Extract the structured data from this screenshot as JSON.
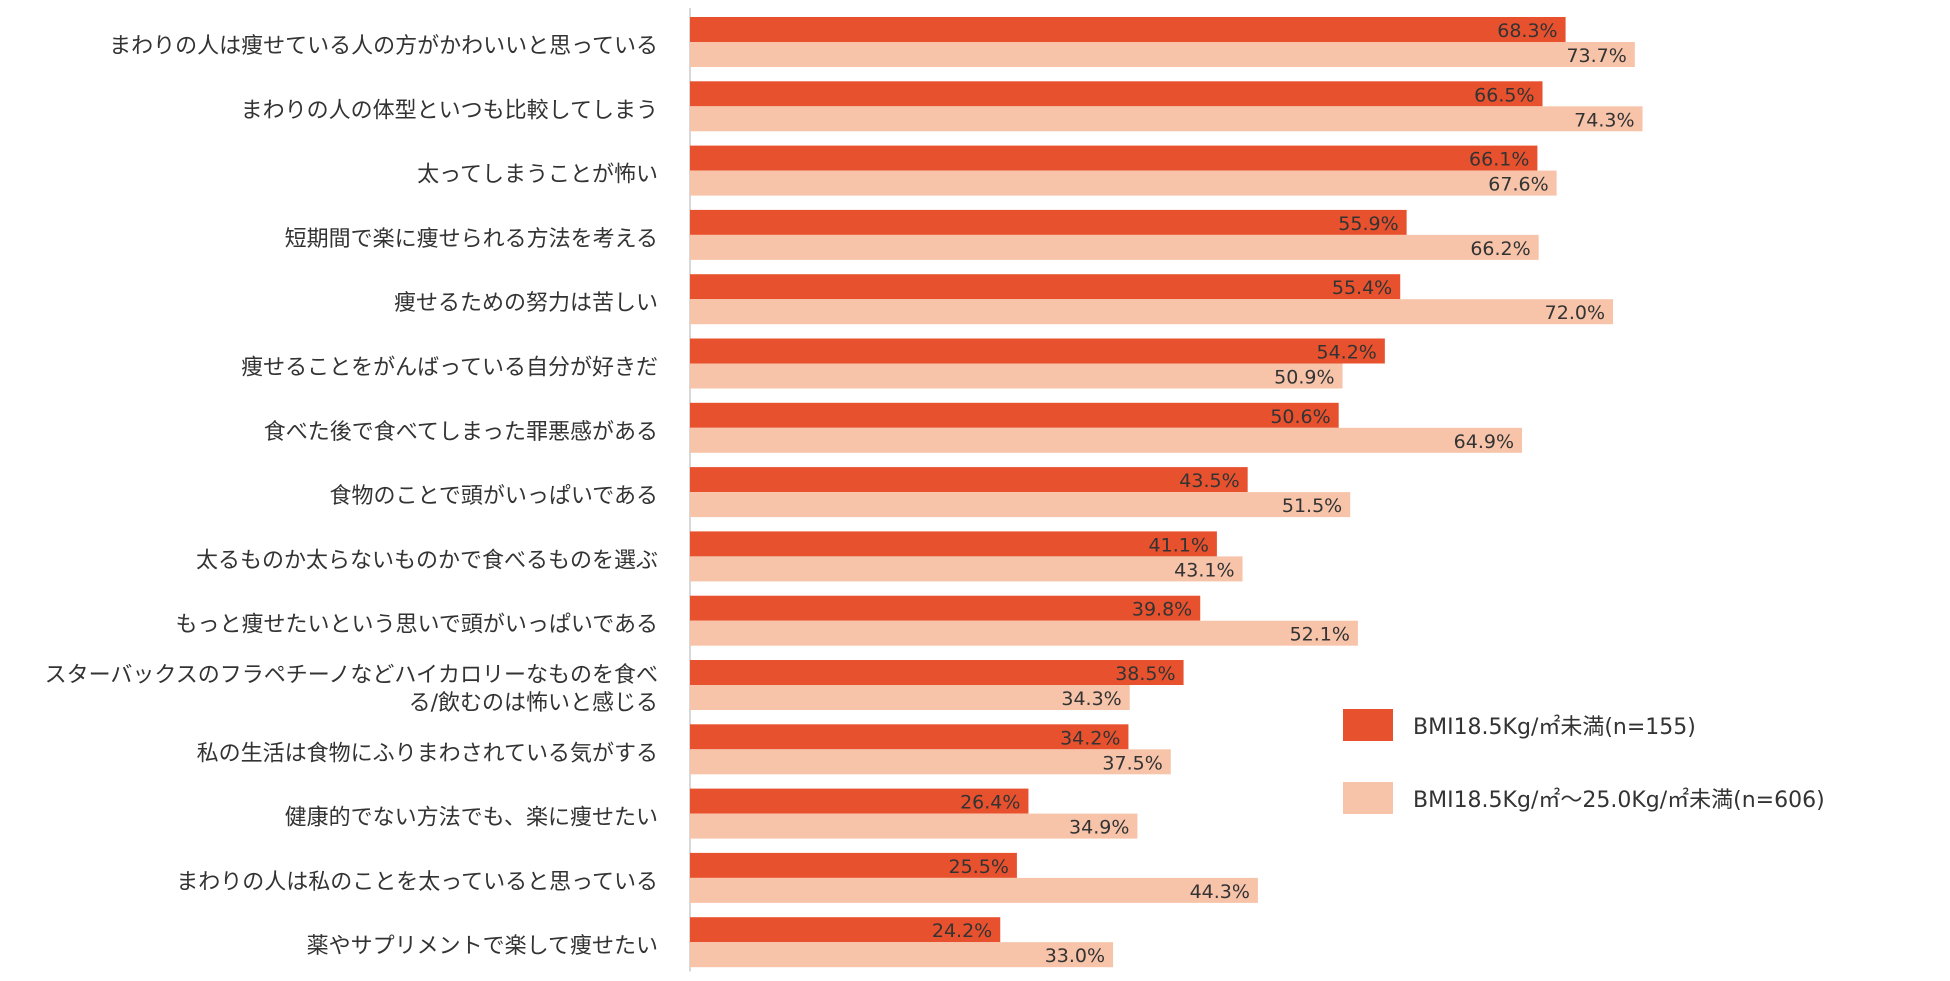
{
  "colors": {
    "series1": "#e8512e",
    "series2": "#f7c4aa",
    "axis": "#cccccc",
    "text": "#333333"
  },
  "chart_data": {
    "type": "bar",
    "orientation": "horizontal",
    "title": "",
    "xlabel": "",
    "ylabel": "",
    "xlim": [
      0,
      100
    ],
    "grid": false,
    "legend_position": "right",
    "categories": [
      [
        "まわりの人は痩せている人の方がかわいいと思っている"
      ],
      [
        "まわりの人の体型といつも比較してしまう"
      ],
      [
        "太ってしまうことが怖い"
      ],
      [
        "短期間で楽に痩せられる方法を考える"
      ],
      [
        "痩せるための努力は苦しい"
      ],
      [
        "痩せることをがんばっている自分が好きだ"
      ],
      [
        "食べた後で食べてしまった罪悪感がある"
      ],
      [
        "食物のことで頭がいっぱいである"
      ],
      [
        "太るものか太らないものかで食べるものを選ぶ"
      ],
      [
        "もっと痩せたいという思いで頭がいっぱいである"
      ],
      [
        "スターバックスのフラペチーノなどハイカロリーなものを食べ",
        "る/飲むのは怖いと感じる"
      ],
      [
        "私の生活は食物にふりまわされている気がする"
      ],
      [
        "健康的でない方法でも、楽に痩せたい"
      ],
      [
        "まわりの人は私のことを太っていると思っている"
      ],
      [
        "薬やサプリメントで楽して痩せたい"
      ]
    ],
    "series": [
      {
        "name": "BMI18.5Kg/㎡未満(n=155)",
        "values": [
          68.3,
          66.5,
          66.1,
          55.9,
          55.4,
          54.2,
          50.6,
          43.5,
          41.1,
          39.8,
          38.5,
          34.2,
          26.4,
          25.5,
          24.2
        ],
        "labels": [
          "68.3%",
          "66.5%",
          "66.1%",
          "55.9%",
          "55.4%",
          "54.2%",
          "50.6%",
          "43.5%",
          "41.1%",
          "39.8%",
          "38.5%",
          "34.2%",
          "26.4%",
          "25.5%",
          "24.2%"
        ]
      },
      {
        "name": "BMI18.5Kg/㎡〜25.0Kg/㎡未満(n=606)",
        "values": [
          73.7,
          74.3,
          67.6,
          66.2,
          72.0,
          50.9,
          64.9,
          51.5,
          43.1,
          52.1,
          34.3,
          37.5,
          34.9,
          44.3,
          33.0
        ],
        "labels": [
          "73.7%",
          "74.3%",
          "67.6%",
          "66.2%",
          "72.0%",
          "50.9%",
          "64.9%",
          "51.5%",
          "43.1%",
          "52.1%",
          "34.3%",
          "37.5%",
          "34.9%",
          "44.3%",
          "33.0%"
        ]
      }
    ]
  }
}
